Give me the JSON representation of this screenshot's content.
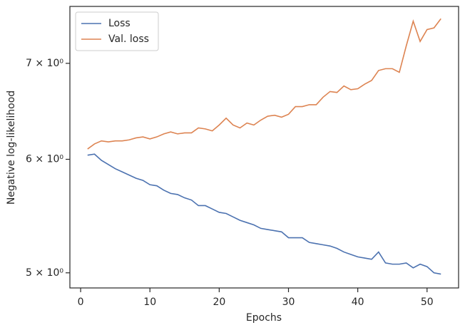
{
  "chart_data": {
    "type": "line",
    "xlabel": "Epochs",
    "ylabel": "Negative log-likelihood",
    "x": [
      1,
      2,
      3,
      4,
      5,
      6,
      7,
      8,
      9,
      10,
      11,
      12,
      13,
      14,
      15,
      16,
      17,
      18,
      19,
      20,
      21,
      22,
      23,
      24,
      25,
      26,
      27,
      28,
      29,
      30,
      31,
      32,
      33,
      34,
      35,
      36,
      37,
      38,
      39,
      40,
      41,
      42,
      43,
      44,
      45,
      46,
      47,
      48,
      49,
      50,
      51,
      52
    ],
    "series": [
      {
        "name": "Loss",
        "color": "#4c72b0",
        "values": [
          6.04,
          6.05,
          5.99,
          5.95,
          5.91,
          5.88,
          5.85,
          5.82,
          5.8,
          5.76,
          5.75,
          5.71,
          5.68,
          5.67,
          5.64,
          5.62,
          5.57,
          5.57,
          5.54,
          5.51,
          5.5,
          5.47,
          5.44,
          5.42,
          5.4,
          5.37,
          5.36,
          5.35,
          5.34,
          5.29,
          5.29,
          5.29,
          5.25,
          5.24,
          5.23,
          5.22,
          5.2,
          5.17,
          5.15,
          5.13,
          5.12,
          5.11,
          5.17,
          5.08,
          5.07,
          5.07,
          5.08,
          5.04,
          5.07,
          5.05,
          5.0,
          4.99
        ]
      },
      {
        "name": "Val. loss",
        "color": "#dd8452",
        "values": [
          6.1,
          6.15,
          6.18,
          6.17,
          6.18,
          6.18,
          6.19,
          6.21,
          6.22,
          6.2,
          6.22,
          6.25,
          6.27,
          6.25,
          6.26,
          6.26,
          6.31,
          6.3,
          6.28,
          6.34,
          6.41,
          6.34,
          6.31,
          6.36,
          6.34,
          6.39,
          6.43,
          6.44,
          6.42,
          6.45,
          6.53,
          6.53,
          6.55,
          6.55,
          6.63,
          6.69,
          6.68,
          6.75,
          6.71,
          6.72,
          6.77,
          6.81,
          6.92,
          6.94,
          6.94,
          6.9,
          7.2,
          7.49,
          7.25,
          7.39,
          7.41,
          7.52
        ]
      }
    ],
    "xlim": [
      -1.55,
      54.55
    ],
    "xticks": [
      0,
      10,
      20,
      30,
      40,
      50
    ],
    "ylim": [
      4.88,
      7.67
    ],
    "log_y": true,
    "yticks": [
      {
        "value": 5,
        "label": "5 × 10⁰"
      },
      {
        "value": 6,
        "label": "6 × 10⁰"
      },
      {
        "value": 7,
        "label": "7 × 10⁰"
      }
    ],
    "grid": false,
    "legend": "upper left"
  }
}
